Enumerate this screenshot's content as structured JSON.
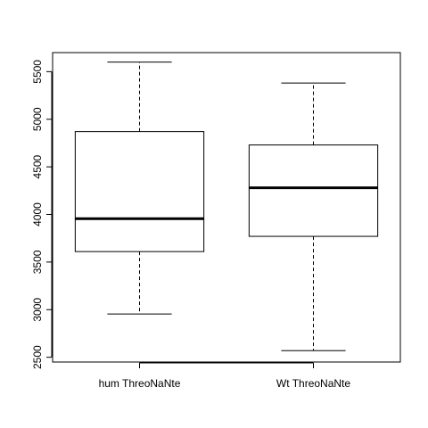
{
  "chart_data": {
    "type": "boxplot",
    "title": "",
    "xlabel": "",
    "ylabel": "",
    "categories": [
      "hum ThreoNaNte",
      "Wt ThreoNaNte"
    ],
    "boxes": [
      {
        "category": "hum ThreoNaNte",
        "min": 2955,
        "q1": 3610,
        "median": 3955,
        "q3": 4870,
        "max": 5600
      },
      {
        "category": "Wt ThreoNaNte",
        "min": 2570,
        "q1": 3770,
        "median": 4280,
        "q3": 4730,
        "max": 5380
      }
    ],
    "ylim": [
      2450,
      5700
    ],
    "yticks": [
      2500,
      3000,
      3500,
      4000,
      4500,
      5000,
      5500
    ],
    "grid": false,
    "legend": "none"
  }
}
